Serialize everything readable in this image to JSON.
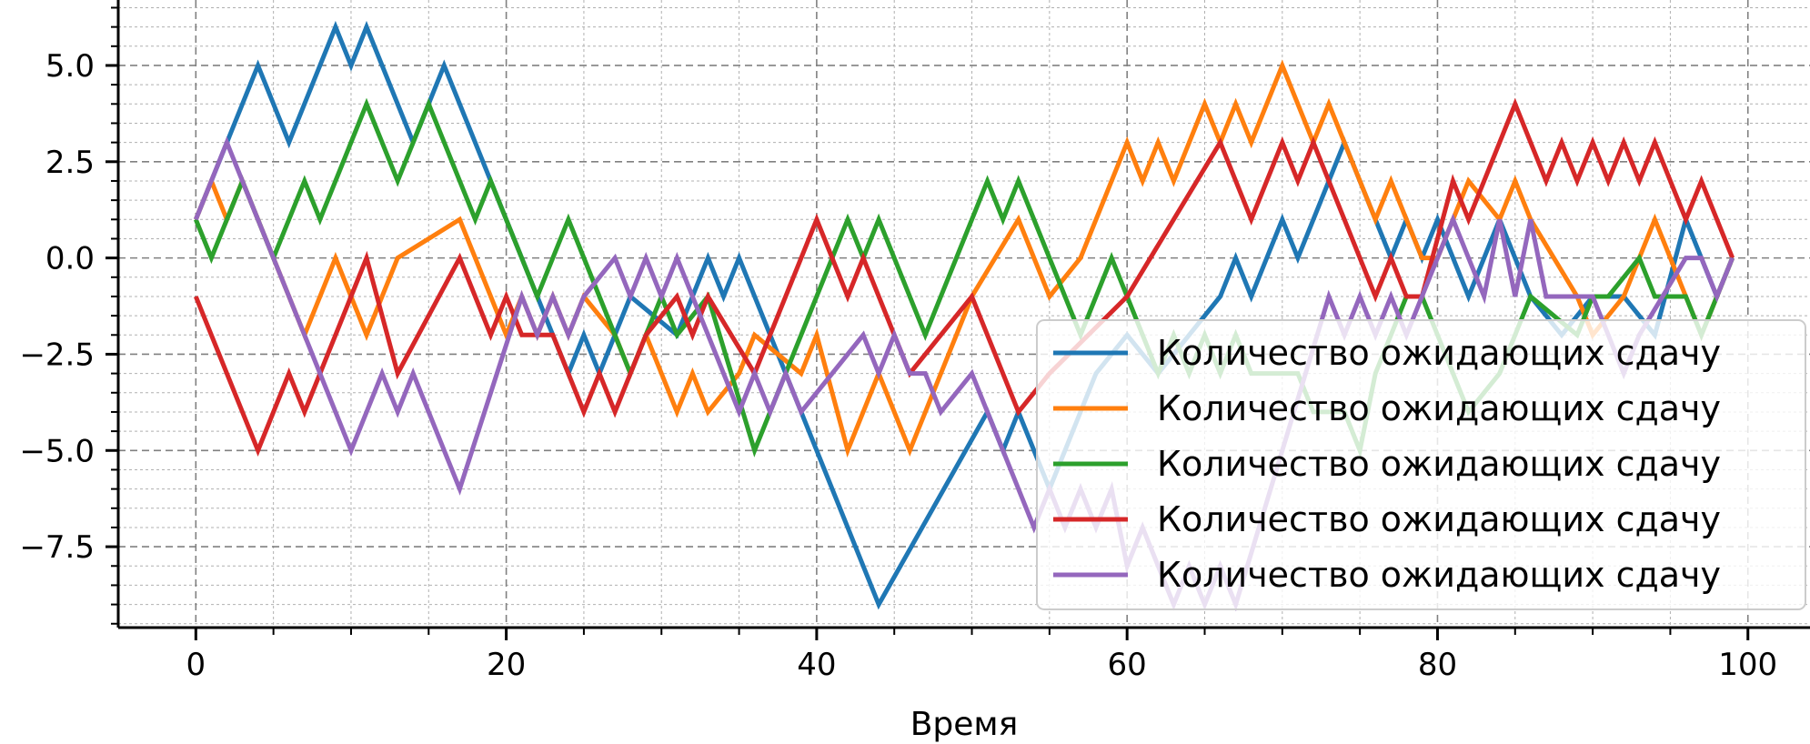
{
  "chart_data": {
    "type": "line",
    "title": "",
    "xlabel": "Время",
    "ylabel": "",
    "xlim": [
      -5,
      104
    ],
    "ylim": [
      -9.6,
      6.7
    ],
    "xticks": [
      0,
      20,
      40,
      60,
      80,
      100
    ],
    "xtick_labels": [
      "0",
      "20",
      "40",
      "60",
      "80",
      "100"
    ],
    "yticks": [
      5.0,
      2.5,
      0.0,
      -2.5,
      -5.0,
      -7.5
    ],
    "ytick_labels": [
      "5.0",
      "2.5",
      "0.0",
      "−2.5",
      "−5.0",
      "−7.5"
    ],
    "grid": "major and minor, dashed",
    "legend_position": "lower right",
    "series": [
      {
        "name": "Количество ожидающих сдачу",
        "color": "#1f77b4",
        "x": [
          0,
          4,
          6,
          9,
          10,
          11,
          14,
          16,
          22,
          24,
          25,
          26,
          28,
          31,
          33,
          34,
          35,
          38,
          44,
          51,
          52,
          53,
          55,
          56,
          58,
          60,
          62,
          64,
          66,
          67,
          68,
          70,
          71,
          74,
          75,
          77,
          78,
          79,
          80,
          82,
          84,
          86,
          88,
          90,
          92,
          94,
          96,
          98,
          99
        ],
        "y": [
          1,
          5,
          3,
          6,
          5,
          6,
          3,
          5,
          -1,
          -3,
          -2,
          -3,
          -1,
          -2,
          0,
          -1,
          0,
          -3,
          -9,
          -4,
          -5,
          -4,
          -6,
          -5,
          -3,
          -2,
          -3,
          -2,
          -1,
          0,
          -1,
          1,
          0,
          3,
          2,
          0,
          1,
          0,
          1,
          -1,
          1,
          -1,
          -2,
          -1,
          -1,
          -2,
          1,
          -1,
          0
        ]
      },
      {
        "name": "Количество ожидающих сдачу",
        "color": "#ff7f0e",
        "x": [
          0,
          1,
          2,
          3,
          4,
          5,
          7,
          9,
          11,
          13,
          17,
          18,
          20,
          21,
          22,
          23,
          24,
          25,
          27,
          28,
          29,
          31,
          32,
          33,
          35,
          36,
          39,
          40,
          42,
          44,
          46,
          49,
          50,
          53,
          54,
          55,
          57,
          60,
          61,
          62,
          63,
          65,
          66,
          67,
          68,
          70,
          72,
          73,
          76,
          77,
          78,
          79,
          80,
          81,
          82,
          84,
          85,
          86,
          89,
          90,
          92,
          94,
          95,
          96,
          97,
          99
        ],
        "y": [
          1,
          2,
          1,
          2,
          1,
          0,
          -2,
          0,
          -2,
          0,
          1,
          0,
          -2,
          -1,
          -2,
          -1,
          -2,
          -1,
          -2,
          -3,
          -2,
          -4,
          -3,
          -4,
          -3,
          -2,
          -3,
          -2,
          -5,
          -3,
          -5,
          -2,
          -1,
          1,
          0,
          -1,
          0,
          3,
          2,
          3,
          2,
          4,
          3,
          4,
          3,
          5,
          3,
          4,
          1,
          2,
          1,
          0,
          0,
          1,
          2,
          1,
          2,
          1,
          -1,
          -2,
          -1,
          1,
          0,
          -1,
          -2,
          0
        ]
      },
      {
        "name": "Количество ожидающих сдачу",
        "color": "#2ca02c",
        "x": [
          0,
          1,
          3,
          5,
          7,
          8,
          11,
          13,
          15,
          18,
          19,
          22,
          24,
          28,
          30,
          31,
          33,
          36,
          42,
          43,
          44,
          47,
          51,
          52,
          53,
          57,
          59,
          62,
          63,
          64,
          65,
          66,
          67,
          68,
          71,
          72,
          74,
          75,
          76,
          77,
          78,
          79,
          80,
          81,
          82,
          84,
          86,
          89,
          90,
          91,
          93,
          94,
          96,
          97,
          99
        ],
        "y": [
          1,
          0,
          2,
          0,
          2,
          1,
          4,
          2,
          4,
          1,
          2,
          -1,
          1,
          -3,
          -1,
          -2,
          -1,
          -5,
          1,
          0,
          1,
          -2,
          2,
          1,
          2,
          -2,
          0,
          -3,
          -2,
          -3,
          -2,
          -3,
          -2,
          -3,
          -3,
          -4,
          -4,
          -5,
          -3,
          -2,
          -1,
          -1,
          -2,
          -3,
          -4,
          -3,
          -1,
          -2,
          -1,
          -1,
          0,
          -1,
          -1,
          -2,
          0
        ]
      },
      {
        "name": "Количество ожидающих сдачу",
        "color": "#d62728",
        "x": [
          0,
          4,
          6,
          7,
          9,
          11,
          13,
          17,
          19,
          20,
          21,
          23,
          25,
          26,
          27,
          29,
          31,
          32,
          33,
          36,
          40,
          42,
          43,
          46,
          48,
          50,
          53,
          55,
          60,
          66,
          68,
          70,
          71,
          72,
          73,
          76,
          77,
          78,
          79,
          81,
          82,
          85,
          87,
          88,
          89,
          90,
          91,
          92,
          93,
          94,
          96,
          97,
          99
        ],
        "y": [
          -1,
          -5,
          -3,
          -4,
          -2,
          0,
          -3,
          0,
          -2,
          -1,
          -2,
          -2,
          -4,
          -3,
          -4,
          -2,
          -1,
          -2,
          -1,
          -3,
          1,
          -1,
          0,
          -3,
          -2,
          -1,
          -4,
          -3,
          -1,
          3,
          1,
          3,
          2,
          3,
          2,
          -1,
          0,
          -1,
          -1,
          2,
          1,
          4,
          2,
          3,
          2,
          3,
          2,
          3,
          2,
          3,
          1,
          2,
          0
        ]
      },
      {
        "name": "Количество ожидающих сдачу",
        "color": "#9467bd",
        "x": [
          0,
          2,
          10,
          12,
          13,
          14,
          17,
          21,
          22,
          23,
          24,
          25,
          27,
          28,
          29,
          30,
          31,
          32,
          35,
          36,
          37,
          38,
          39,
          43,
          44,
          45,
          46,
          47,
          48,
          50,
          51,
          54,
          55,
          56,
          57,
          58,
          59,
          60,
          61,
          62,
          63,
          64,
          65,
          66,
          67,
          73,
          74,
          75,
          76,
          77,
          78,
          80,
          81,
          83,
          84,
          85,
          86,
          87,
          88,
          90,
          91,
          92,
          93,
          96,
          97,
          98,
          99
        ],
        "y": [
          1,
          3,
          -5,
          -3,
          -4,
          -3,
          -6,
          -1,
          -2,
          -1,
          -2,
          -1,
          0,
          -1,
          0,
          -1,
          0,
          -1,
          -4,
          -3,
          -4,
          -3,
          -4,
          -2,
          -3,
          -2,
          -3,
          -3,
          -4,
          -3,
          -4,
          -7,
          -6,
          -7,
          -6,
          -7,
          -6,
          -8,
          -7,
          -8,
          -9,
          -8,
          -9,
          -8,
          -9,
          -1,
          -2,
          -1,
          -2,
          -1,
          -2,
          0,
          1,
          -1,
          1,
          -1,
          1,
          -1,
          -1,
          -1,
          -2,
          -3,
          -2,
          0,
          0,
          -1,
          0
        ]
      }
    ]
  }
}
